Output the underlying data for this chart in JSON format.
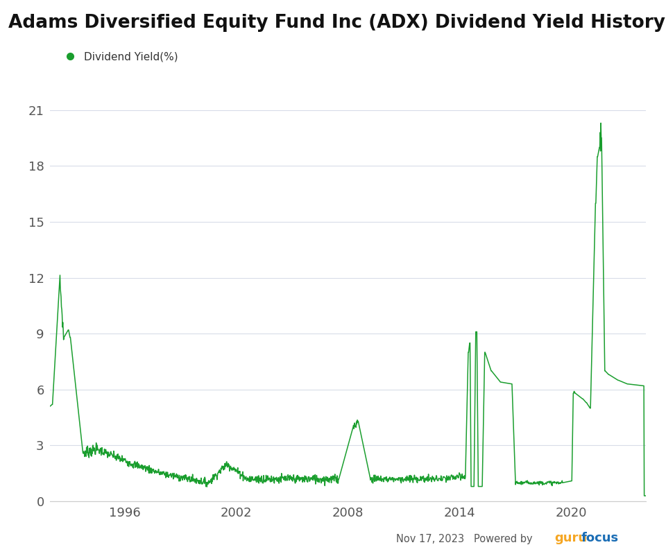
{
  "title": "Adams Diversified Equity Fund Inc (ADX) Dividend Yield History",
  "legend_label": "Dividend Yield(%)",
  "line_color": "#1a9e2e",
  "background_color": "#ffffff",
  "plot_background": "#ffffff",
  "grid_color": "#d8dce8",
  "yticks": [
    0,
    3,
    6,
    9,
    12,
    15,
    18,
    21
  ],
  "ylim": [
    0,
    22
  ],
  "date_annotation": "Nov 17, 2023",
  "powered_by": "Powered by",
  "guru_text": "guru",
  "focus_text": "focus",
  "guru_color": "#f5a623",
  "focus_color": "#1a6db5",
  "xtick_labels": [
    "1996",
    "2002",
    "2008",
    "2014",
    "2020"
  ],
  "xtick_positions": [
    1996,
    2002,
    2008,
    2014,
    2020
  ],
  "xmin": 1992.0,
  "xmax": 2024.0,
  "title_fontsize": 19,
  "legend_fontsize": 11,
  "tick_fontsize": 13
}
